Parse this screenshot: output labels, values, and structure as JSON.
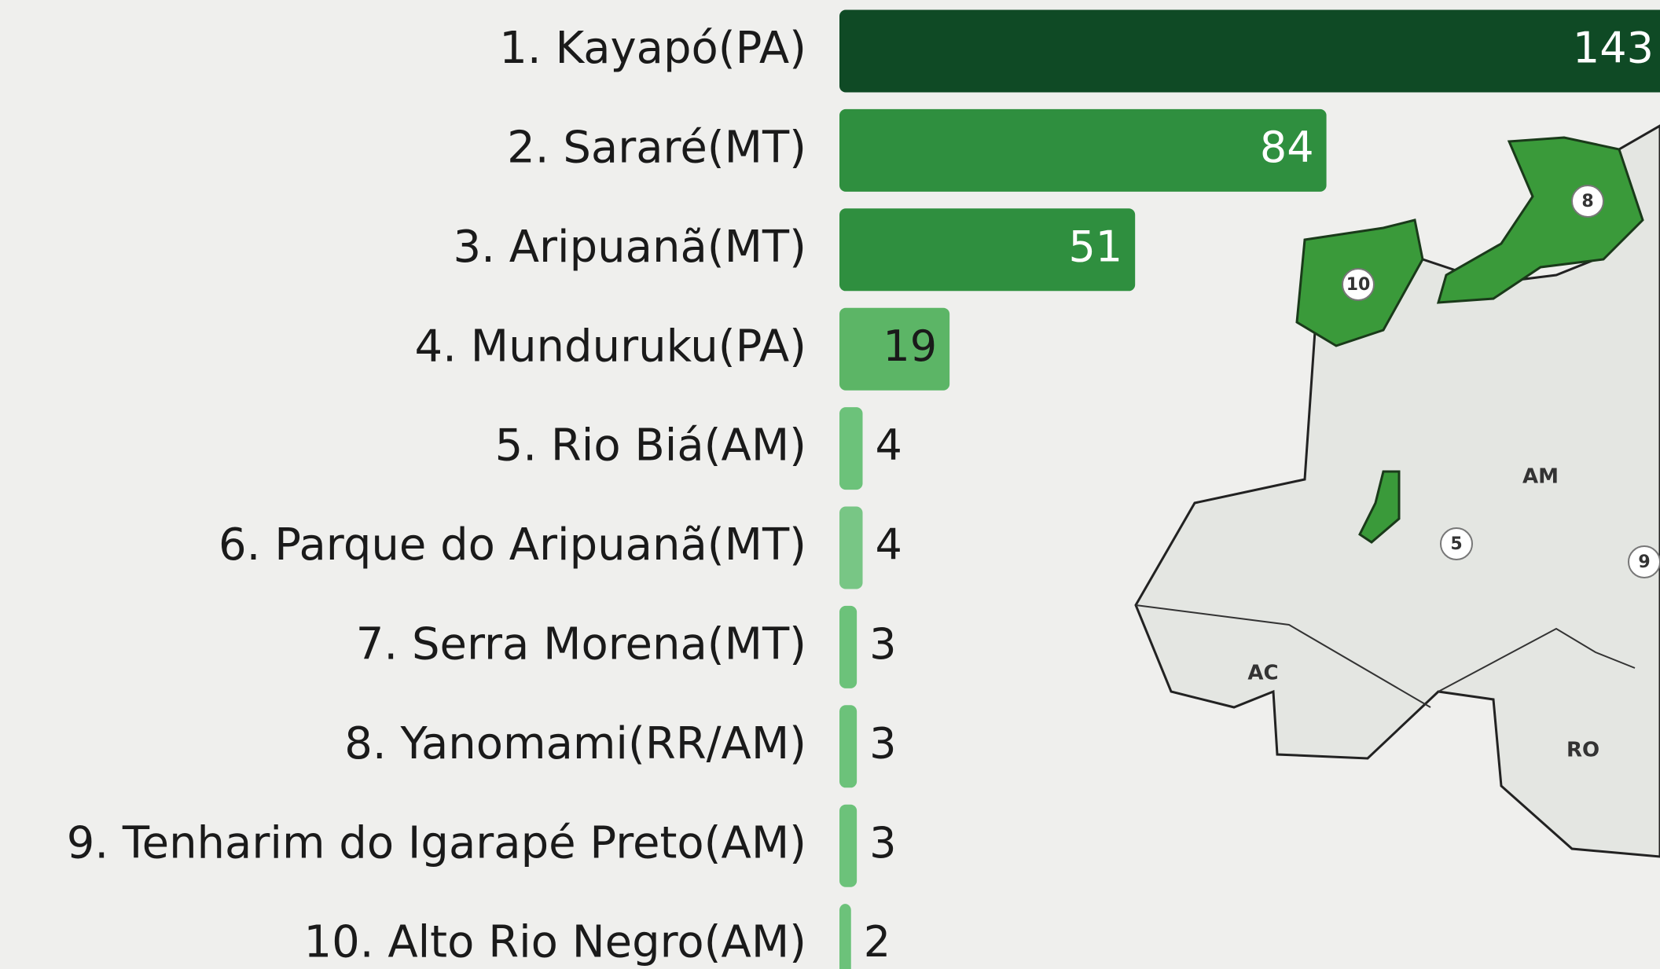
{
  "chart_data": {
    "type": "bar",
    "orientation": "horizontal",
    "categories": [
      "1. Kayapó(PA)",
      "2. Sararé(MT)",
      "3. Aripuanã(MT)",
      "4. Munduruku(PA)",
      "5. Rio Biá(AM)",
      "6. Parque do Aripuanã(MT)",
      "7. Serra Morena(MT)",
      "8. Yanomami(RR/AM)",
      "9. Tenharim do Igarapé Preto(AM)",
      "10. Alto Rio Negro(AM)"
    ],
    "values": [
      143,
      84,
      51,
      19,
      4,
      4,
      3,
      3,
      3,
      2
    ],
    "colors": [
      "#0f4a25",
      "#2f8f3f",
      "#2f8f3f",
      "#5cb566",
      "#6cc27a",
      "#78c685",
      "#6cc27a",
      "#6cc27a",
      "#6cc27a",
      "#6cc27a"
    ],
    "map_labels": [
      "AM",
      "AC",
      "RO"
    ],
    "map_markers": [
      "8",
      "10",
      "5",
      "9"
    ]
  }
}
